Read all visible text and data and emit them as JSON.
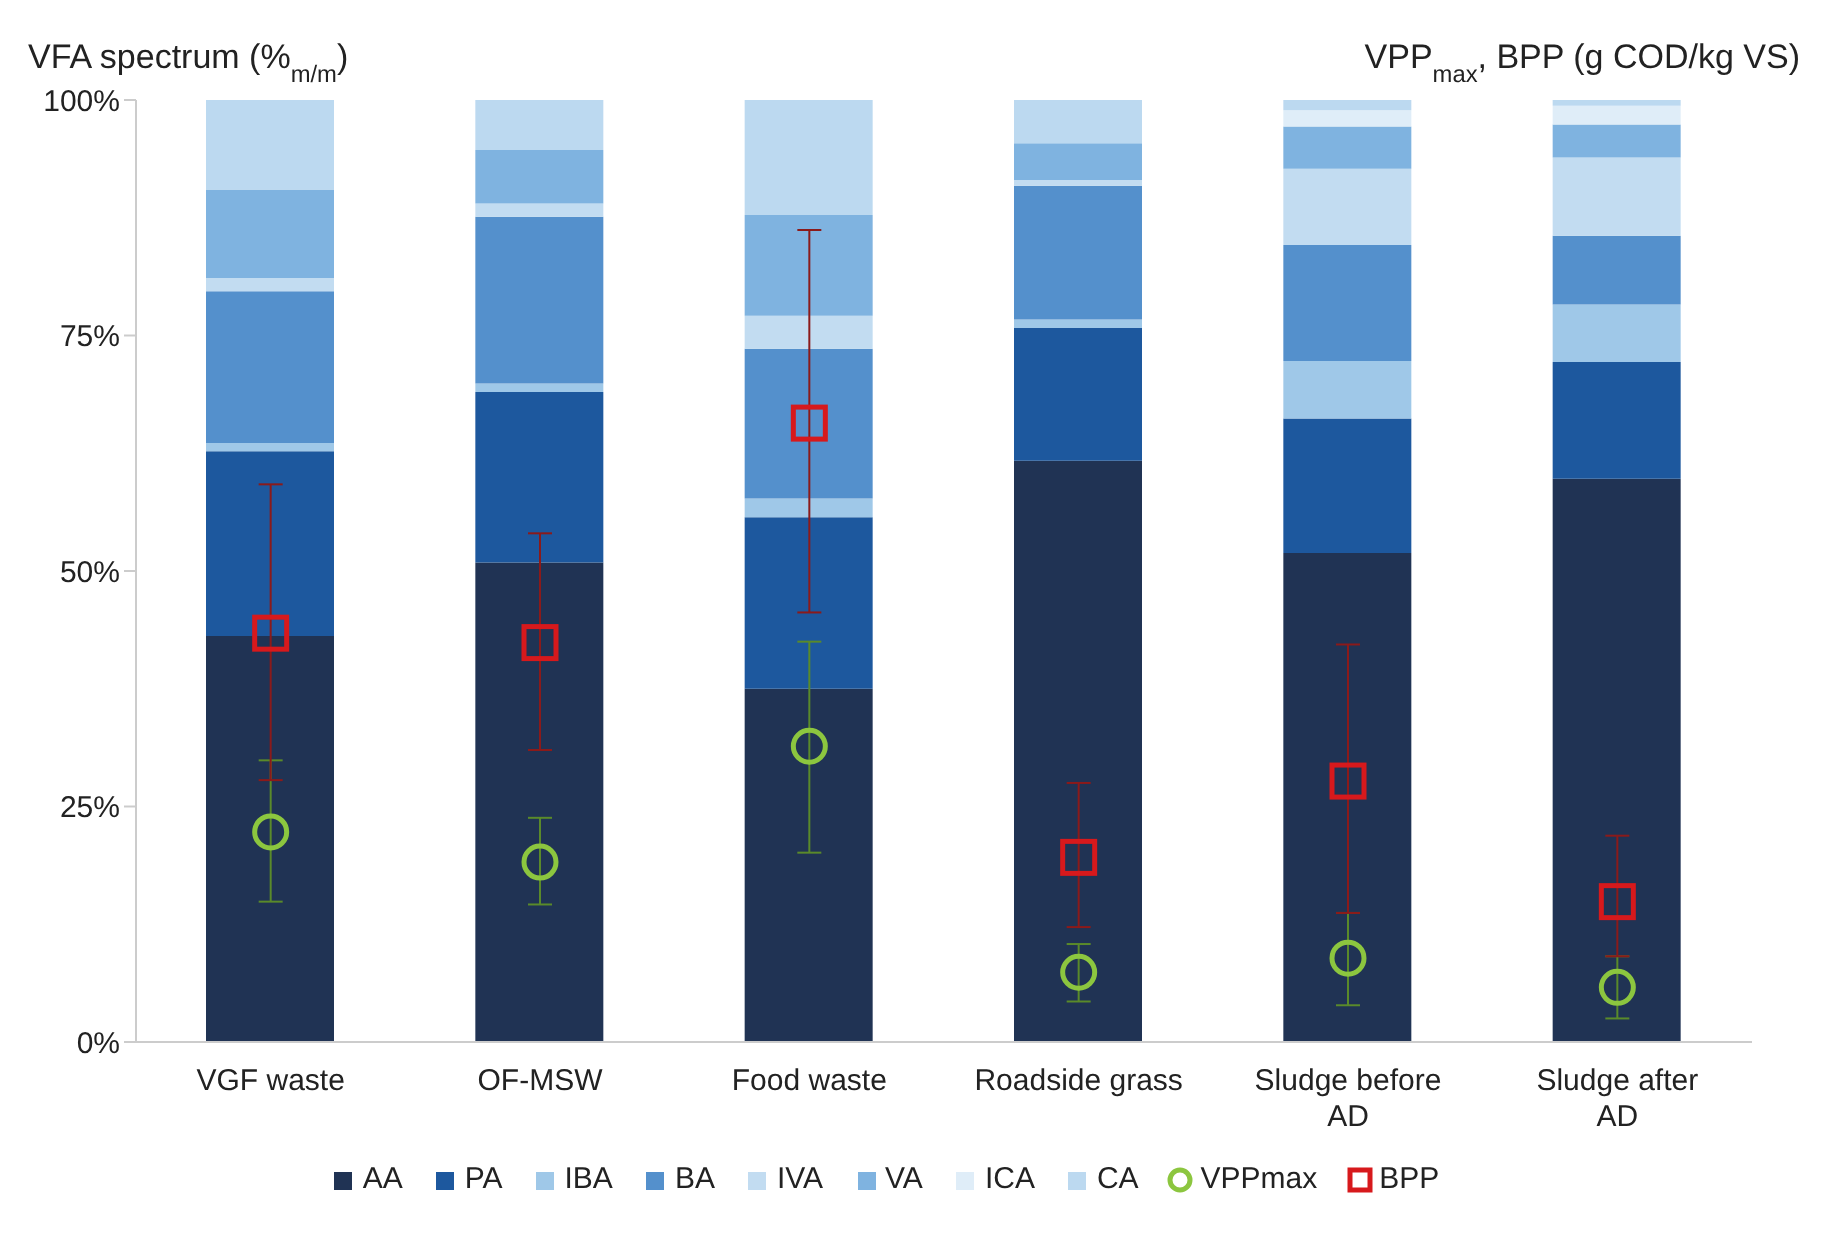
{
  "chart_data": {
    "type": "bar",
    "stacked": true,
    "ylabel": "VFA spectrum (%$_{m/m}$)",
    "y2label": "VPP$_{max}$, BPP (g COD/kg VS)",
    "categories": [
      "VGF waste",
      "OF-MSW",
      "Food waste",
      "Roadside grass",
      "Sludge before AD",
      "Sludge after AD"
    ],
    "ylim": [
      0,
      100
    ],
    "yticks": [
      {
        "value": 0,
        "label": "0%"
      },
      {
        "value": 25,
        "label": "25%"
      },
      {
        "value": 50,
        "label": "50%"
      },
      {
        "value": 75,
        "label": "75%"
      },
      {
        "value": 100,
        "label": "100%"
      }
    ],
    "grid": false,
    "legend": "bottom",
    "series": [
      {
        "name": "AA",
        "color": "#203354",
        "values": [
          43.1,
          50.9,
          37.5,
          61.7,
          51.9,
          59.8
        ]
      },
      {
        "name": "PA",
        "color": "#1d589e",
        "values": [
          19.6,
          18.1,
          18.2,
          14.1,
          14.3,
          12.4
        ]
      },
      {
        "name": "IBA",
        "color": "#9fc8e8",
        "values": [
          0.9,
          0.9,
          2.0,
          0.9,
          6.1,
          6.1
        ]
      },
      {
        "name": "BA",
        "color": "#5490cc",
        "values": [
          16.1,
          17.7,
          15.9,
          14.2,
          12.3,
          7.3
        ]
      },
      {
        "name": "IVA",
        "color": "#c2dcf1",
        "values": [
          1.4,
          1.4,
          3.5,
          0.6,
          8.1,
          8.3
        ]
      },
      {
        "name": "VA",
        "color": "#7fb3e0",
        "values": [
          9.4,
          5.7,
          10.7,
          3.9,
          4.5,
          3.5
        ]
      },
      {
        "name": "ICA",
        "color": "#dfedf8",
        "values": [
          0,
          0,
          0,
          0,
          1.7,
          2.0
        ]
      },
      {
        "name": "CA",
        "color": "#bcd9f0",
        "values": [
          9.5,
          5.3,
          12.2,
          4.6,
          1.1,
          0.6
        ]
      },
      {
        "name": "VPPmax",
        "type": "scatter",
        "marker": "circle",
        "color": "#8cc63f",
        "values": [
          22.3,
          19.1,
          31.4,
          7.4,
          8.9,
          5.8
        ],
        "errors": [
          [
            14.9,
            29.9
          ],
          [
            14.6,
            23.8
          ],
          [
            20.1,
            42.5
          ],
          [
            4.3,
            10.4
          ],
          [
            3.9,
            13.7
          ],
          [
            2.5,
            9.1
          ]
        ]
      },
      {
        "name": "BPP",
        "type": "scatter",
        "marker": "square",
        "color": "#d7191c",
        "values": [
          43.4,
          42.4,
          65.7,
          19.6,
          27.7,
          14.9
        ],
        "errors": [
          [
            27.8,
            59.2
          ],
          [
            31.0,
            54.0
          ],
          [
            45.6,
            86.2
          ],
          [
            12.2,
            27.5
          ],
          [
            13.7,
            42.2
          ],
          [
            9.1,
            21.9
          ]
        ]
      }
    ]
  }
}
